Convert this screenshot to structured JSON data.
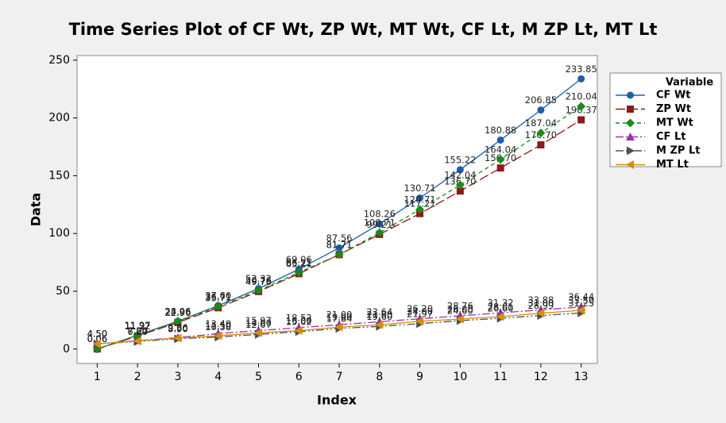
{
  "chart_data": {
    "type": "line",
    "title": "Time Series Plot of CF Wt, ZP Wt, MT Wt, CF Lt, M ZP Lt, MT Lt",
    "x_label": "Index",
    "y_label": "Data",
    "legend_title": "Variable",
    "legend_position": "right",
    "x": [
      1,
      2,
      3,
      4,
      5,
      6,
      7,
      8,
      9,
      10,
      11,
      12,
      13
    ],
    "xlim": [
      0.5,
      13.4
    ],
    "xticks": [
      1,
      2,
      3,
      4,
      5,
      6,
      7,
      8,
      9,
      10,
      11,
      12,
      13
    ],
    "ylim": [
      -12.5,
      254
    ],
    "yticks": [
      0,
      50,
      100,
      150,
      200,
      250
    ],
    "series": [
      {
        "name": "CF Wt",
        "color": "#1f5ea8",
        "marker": "circle",
        "dash": "none",
        "values": [
          0.06,
          11.97,
          24.06,
          37.6,
          52.32,
          69.06,
          87.56,
          108.26,
          130.71,
          155.22,
          180.88,
          206.85,
          233.85
        ],
        "value_labels": [
          "0.06",
          "11.97",
          "24.06",
          "37.60",
          "52.32",
          "69.06",
          "87.56",
          "108.26",
          "130.71",
          "155.22",
          "180.88",
          "206.85",
          "233.85"
        ]
      },
      {
        "name": "ZP Wt",
        "color": "#8b1a1a",
        "marker": "square",
        "dash": "12 4",
        "values": [
          0.06,
          11.22,
          22.96,
          35.71,
          49.76,
          65.21,
          81.71,
          99.21,
          117.21,
          136.7,
          156.7,
          176.7,
          198.37
        ],
        "value_labels": [
          "0.06",
          "11.22",
          "22.96",
          "35.71",
          "49.76",
          "65.21",
          "81.71",
          "99.21",
          "117.21",
          "136.70",
          "156.70",
          "176.70",
          "198.37"
        ]
      },
      {
        "name": "MT Wt",
        "color": "#1a8a1a",
        "marker": "diamond",
        "dash": "5 4",
        "values": [
          0.06,
          11.97,
          23.96,
          36.71,
          50.76,
          66.21,
          81.71,
          100.71,
          120.71,
          142.04,
          164.04,
          187.04,
          210.04
        ],
        "value_labels": [
          "0.06",
          "11.97",
          "23.96",
          "36.71",
          "50.76",
          "66.21",
          "81.71",
          "100.71",
          "120.71",
          "142.04",
          "164.04",
          "187.04",
          "210.04"
        ]
      },
      {
        "name": "CF Lt",
        "color": "#9b30b0",
        "marker": "triangle-up",
        "dash": "10 3 2 3",
        "values": [
          4.5,
          7.24,
          9.86,
          13.4,
          15.97,
          18.52,
          21.0,
          23.64,
          26.2,
          28.76,
          31.32,
          33.88,
          36.44
        ],
        "value_labels": [
          "4.50",
          "7.24",
          "9.86",
          "13.40",
          "15.97",
          "18.52",
          "21.00",
          "23.64",
          "26.20",
          "28.76",
          "31.32",
          "33.88",
          "36.44"
        ]
      },
      {
        "name": "M ZP Lt",
        "color": "#505050",
        "marker": "triangle-right",
        "dash": "10 3 2 3 2 3",
        "values": [
          4.5,
          6.5,
          8.9,
          10.38,
          12.67,
          15.02,
          17.84,
          19.6,
          21.97,
          24.6,
          26.6,
          28.99,
          31.25
        ],
        "value_labels": [
          "4.50",
          "6.50",
          "8.90",
          "10.38",
          "12.67",
          "15.02",
          "17.84",
          "19.60",
          "21.97",
          "24.60",
          "26.60",
          "28.99",
          "31.25"
        ]
      },
      {
        "name": "MT Lt",
        "color": "#d4900a",
        "marker": "triangle-left",
        "dash": "none",
        "values": [
          4.5,
          7.0,
          9.5,
          11.5,
          14.0,
          16.0,
          19.0,
          21.0,
          24.0,
          26.0,
          28.01,
          31.0,
          33.5
        ],
        "value_labels": [
          "4.50",
          "7.00",
          "9.50",
          "11.50",
          "14.00",
          "16.00",
          "19.00",
          "21.00",
          "24.00",
          "26.00",
          "28.01",
          "31.00",
          "33.50"
        ]
      }
    ]
  }
}
